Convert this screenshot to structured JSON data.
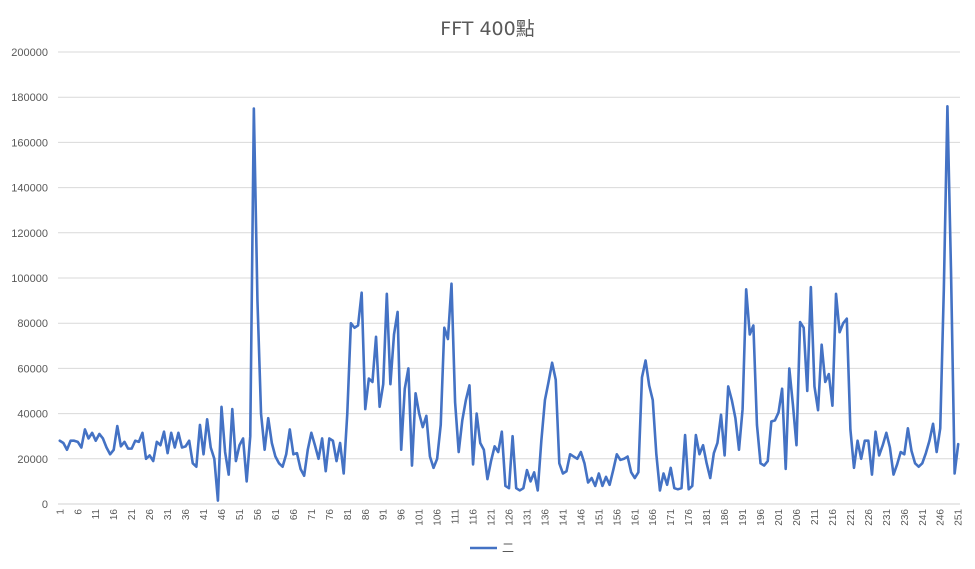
{
  "chart_data": {
    "type": "line",
    "title": "FFT 400點",
    "xlabel": "",
    "ylabel": "",
    "ylim": [
      0,
      200000
    ],
    "ytick_step": 20000,
    "grid": true,
    "legend_position": "bottom",
    "x_label_every": 5,
    "series": [
      {
        "name": "二",
        "color": "#4472C4",
        "values": [
          28000,
          27000,
          24000,
          28000,
          28000,
          27500,
          25000,
          33000,
          29000,
          31500,
          28000,
          31000,
          29000,
          25000,
          22000,
          24000,
          34500,
          25500,
          27500,
          24500,
          24500,
          28000,
          27500,
          31500,
          20000,
          21500,
          19000,
          27500,
          26000,
          32000,
          22500,
          31500,
          25000,
          31500,
          25000,
          25500,
          28000,
          18000,
          16500,
          35000,
          22000,
          37500,
          25000,
          20000,
          1500,
          43000,
          23000,
          13000,
          42000,
          19000,
          26000,
          29000,
          10000,
          30000,
          175000,
          90000,
          40000,
          24000,
          38000,
          27000,
          21000,
          18000,
          16500,
          22000,
          33000,
          22000,
          22500,
          15500,
          12500,
          24000,
          31500,
          26000,
          20000,
          29000,
          14500,
          29000,
          28000,
          19000,
          27000,
          13500,
          40000,
          80000,
          78000,
          79000,
          93500,
          42000,
          55500,
          54000,
          74000,
          43000,
          53000,
          93000,
          53000,
          75000,
          85000,
          24000,
          51000,
          60000,
          17000,
          49000,
          40000,
          34000,
          39000,
          21000,
          16000,
          20000,
          35000,
          78000,
          73000,
          97500,
          45000,
          23000,
          37000,
          46000,
          52500,
          17500,
          40000,
          27000,
          24000,
          11000,
          19000,
          25500,
          23000,
          32000,
          8000,
          7000,
          30000,
          7000,
          6000,
          7000,
          15000,
          10000,
          14000,
          6000,
          28000,
          46000,
          54000,
          62500,
          55000,
          18000,
          13500,
          14500,
          22000,
          21000,
          20000,
          23000,
          18000,
          9500,
          11500,
          8000,
          13500,
          8000,
          12000,
          8500,
          15000,
          22000,
          19500,
          20000,
          21000,
          14000,
          11500,
          14000,
          56000,
          63500,
          52500,
          46000,
          22000,
          6000,
          13500,
          8500,
          16000,
          7000,
          6500,
          7000,
          30500,
          6500,
          8000,
          30500,
          22000,
          26000,
          18000,
          11500,
          22500,
          27000,
          39500,
          21500,
          52000,
          46000,
          38000,
          24000,
          42000,
          95000,
          75000,
          79000,
          35000,
          18000,
          17000,
          19000,
          36500,
          37000,
          40500,
          51000,
          15500,
          60000,
          44000,
          26000,
          80500,
          78000,
          50000,
          96000,
          52000,
          41500,
          70500,
          54000,
          57500,
          43500,
          93000,
          76000,
          80000,
          82000,
          33000,
          16000,
          28000,
          20000,
          28000,
          28000,
          13000,
          32000,
          21500,
          26000,
          31500,
          25000,
          13000,
          17500,
          23000,
          22000,
          33500,
          23500,
          18000,
          16500,
          18000,
          22500,
          28000,
          35500,
          23000,
          33500,
          95000,
          176000,
          103000,
          13500,
          26500
        ]
      }
    ]
  }
}
